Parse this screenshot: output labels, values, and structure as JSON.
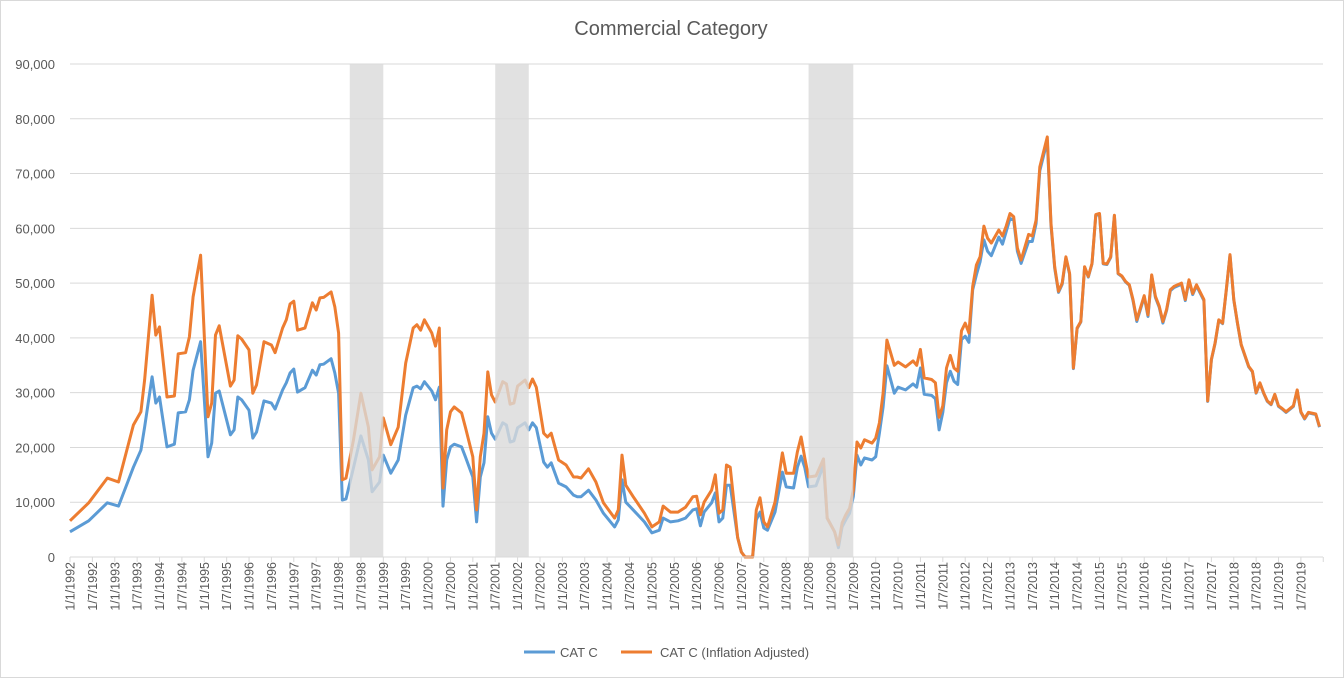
{
  "chart_data": {
    "type": "line",
    "title": "Commercial Category",
    "xlabel": "",
    "ylabel": "",
    "ylim": [
      0,
      90000
    ],
    "y_ticks": [
      "0",
      "10,000",
      "20,000",
      "30,000",
      "40,000",
      "50,000",
      "60,000",
      "70,000",
      "80,000",
      "90,000"
    ],
    "x_range": [
      "1992-01",
      "2019-12"
    ],
    "grid": "horizontal",
    "legend_position": "bottom",
    "shaded_periods": [
      {
        "start": "1998-04",
        "end": "1999-01"
      },
      {
        "start": "2001-07",
        "end": "2002-04"
      },
      {
        "start": "2008-07",
        "end": "2009-07"
      }
    ],
    "shade_color": "#d9d9d9",
    "series": [
      {
        "name": "CAT C",
        "color": "#5B9BD5"
      },
      {
        "name": "CAT C (Inflation Adjusted)",
        "color": "#ED7D31"
      }
    ],
    "points_columns": [
      "date",
      "CAT C",
      "CAT C (Inflation Adjusted)"
    ],
    "points": [
      [
        "1992-01",
        4600,
        6600
      ],
      [
        "1992-06",
        6600,
        9900
      ],
      [
        "1992-11",
        9900,
        14400
      ],
      [
        "1993-02",
        9300,
        13700
      ],
      [
        "1993-06",
        16400,
        24100
      ],
      [
        "1993-08",
        19500,
        26500
      ],
      [
        "1993-09",
        23700,
        32300
      ],
      [
        "1993-11",
        32900,
        47800
      ],
      [
        "1993-12",
        28100,
        40500
      ],
      [
        "1994-01",
        29200,
        42000
      ],
      [
        "1994-03",
        20100,
        29200
      ],
      [
        "1994-05",
        20600,
        29400
      ],
      [
        "1994-06",
        26300,
        37100
      ],
      [
        "1994-08",
        26500,
        37300
      ],
      [
        "1994-09",
        28700,
        40200
      ],
      [
        "1994-10",
        34100,
        47500
      ],
      [
        "1994-12",
        39300,
        55100
      ],
      [
        "1995-02",
        18300,
        25600
      ],
      [
        "1995-03",
        20800,
        28100
      ],
      [
        "1995-04",
        29900,
        40500
      ],
      [
        "1995-05",
        30300,
        42200
      ],
      [
        "1995-08",
        22300,
        31200
      ],
      [
        "1995-09",
        23200,
        32300
      ],
      [
        "1995-10",
        29200,
        40400
      ],
      [
        "1995-11",
        28700,
        39800
      ],
      [
        "1996-01",
        26800,
        37800
      ],
      [
        "1996-02",
        21700,
        29900
      ],
      [
        "1996-03",
        22800,
        31400
      ],
      [
        "1996-05",
        28500,
        39300
      ],
      [
        "1996-07",
        28100,
        38700
      ],
      [
        "1996-08",
        27000,
        37300
      ],
      [
        "1996-10",
        30500,
        41800
      ],
      [
        "1996-11",
        31800,
        43300
      ],
      [
        "1996-12",
        33600,
        46200
      ],
      [
        "1997-01",
        34300,
        46700
      ],
      [
        "1997-02",
        30100,
        41400
      ],
      [
        "1997-04",
        30900,
        41800
      ],
      [
        "1997-06",
        34100,
        46400
      ],
      [
        "1997-07",
        33200,
        45100
      ],
      [
        "1997-08",
        35100,
        47300
      ],
      [
        "1997-09",
        35200,
        47400
      ],
      [
        "1997-11",
        36200,
        48400
      ],
      [
        "1997-12",
        33600,
        45700
      ],
      [
        "1998-01",
        29900,
        40900
      ],
      [
        "1998-02",
        10400,
        14100
      ],
      [
        "1998-03",
        10600,
        14400
      ],
      [
        "1998-05",
        16300,
        21400
      ],
      [
        "1998-07",
        22100,
        29900
      ],
      [
        "1998-09",
        17700,
        23700
      ],
      [
        "1998-10",
        11900,
        15900
      ],
      [
        "1998-12",
        13700,
        18300
      ],
      [
        "1999-01",
        18600,
        25400
      ],
      [
        "1999-03",
        15300,
        20500
      ],
      [
        "1999-05",
        17700,
        23700
      ],
      [
        "1999-07",
        25900,
        35400
      ],
      [
        "1999-09",
        30900,
        41800
      ],
      [
        "1999-10",
        31200,
        42400
      ],
      [
        "1999-11",
        30700,
        41400
      ],
      [
        "1999-12",
        32000,
        43300
      ],
      [
        "2000-02",
        30300,
        40900
      ],
      [
        "2000-03",
        28700,
        38500
      ],
      [
        "2000-04",
        31000,
        41800
      ],
      [
        "2000-05",
        9300,
        12600
      ],
      [
        "2000-06",
        17700,
        23200
      ],
      [
        "2000-07",
        20100,
        26500
      ],
      [
        "2000-08",
        20600,
        27400
      ],
      [
        "2000-10",
        20100,
        26300
      ],
      [
        "2000-11",
        18300,
        23700
      ],
      [
        "2001-01",
        14600,
        18300
      ],
      [
        "2001-02",
        6400,
        8600
      ],
      [
        "2001-03",
        14600,
        18300
      ],
      [
        "2001-04",
        17200,
        22600
      ],
      [
        "2001-05",
        25600,
        33800
      ],
      [
        "2001-06",
        22600,
        29600
      ],
      [
        "2001-07",
        21500,
        28300
      ],
      [
        "2001-09",
        24500,
        32000
      ],
      [
        "2001-10",
        24100,
        31600
      ],
      [
        "2001-11",
        21000,
        27900
      ],
      [
        "2001-12",
        21200,
        28100
      ],
      [
        "2002-01",
        23600,
        31200
      ],
      [
        "2002-03",
        24500,
        32300
      ],
      [
        "2002-04",
        23200,
        30900
      ],
      [
        "2002-05",
        24500,
        32500
      ],
      [
        "2002-06",
        23600,
        31000
      ],
      [
        "2002-08",
        17300,
        22600
      ],
      [
        "2002-09",
        16400,
        21900
      ],
      [
        "2002-10",
        17200,
        22600
      ],
      [
        "2002-12",
        13500,
        17700
      ],
      [
        "2003-02",
        12800,
        16800
      ],
      [
        "2003-04",
        11300,
        14600
      ],
      [
        "2003-05",
        11000,
        14600
      ],
      [
        "2003-06",
        11000,
        14400
      ],
      [
        "2003-08",
        12200,
        16100
      ],
      [
        "2003-10",
        10400,
        13700
      ],
      [
        "2003-12",
        8000,
        9900
      ],
      [
        "2004-03",
        5500,
        7100
      ],
      [
        "2004-04",
        6800,
        8600
      ],
      [
        "2004-05",
        14100,
        18600
      ],
      [
        "2004-06",
        10000,
        13100
      ],
      [
        "2004-08",
        8600,
        11000
      ],
      [
        "2004-11",
        6400,
        8000
      ],
      [
        "2005-01",
        4400,
        5500
      ],
      [
        "2005-03",
        4900,
        6400
      ],
      [
        "2005-04",
        7100,
        9300
      ],
      [
        "2005-06",
        6400,
        8200
      ],
      [
        "2005-08",
        6600,
        8200
      ],
      [
        "2005-10",
        7100,
        9100
      ],
      [
        "2005-12",
        8600,
        11000
      ],
      [
        "2006-01",
        8800,
        11100
      ],
      [
        "2006-02",
        5700,
        7700
      ],
      [
        "2006-03",
        8200,
        10000
      ],
      [
        "2006-05",
        9900,
        12200
      ],
      [
        "2006-06",
        11700,
        15000
      ],
      [
        "2006-07",
        6400,
        8000
      ],
      [
        "2006-08",
        7100,
        8600
      ],
      [
        "2006-09",
        13100,
        16800
      ],
      [
        "2006-10",
        13100,
        16400
      ],
      [
        "2006-12",
        3500,
        3500
      ],
      [
        "2007-01",
        900,
        900
      ],
      [
        "2007-02",
        0,
        0
      ],
      [
        "2007-04",
        0,
        0
      ],
      [
        "2007-05",
        6800,
        8600
      ],
      [
        "2007-06",
        8200,
        10800
      ],
      [
        "2007-07",
        5300,
        6400
      ],
      [
        "2007-08",
        4900,
        5500
      ],
      [
        "2007-10",
        8200,
        10000
      ],
      [
        "2007-12",
        15500,
        19000
      ],
      [
        "2008-01",
        12800,
        15300
      ],
      [
        "2008-03",
        12600,
        15300
      ],
      [
        "2008-04",
        16400,
        19200
      ],
      [
        "2008-05",
        18400,
        21900
      ],
      [
        "2008-06",
        16300,
        18100
      ],
      [
        "2008-07",
        12800,
        14600
      ],
      [
        "2008-09",
        13000,
        14800
      ],
      [
        "2008-11",
        16800,
        17900
      ],
      [
        "2008-12",
        7100,
        7100
      ],
      [
        "2009-02",
        4600,
        4600
      ],
      [
        "2009-03",
        1700,
        2200
      ],
      [
        "2009-04",
        5500,
        6200
      ],
      [
        "2009-05",
        6800,
        7700
      ],
      [
        "2009-06",
        8000,
        8900
      ],
      [
        "2009-07",
        11000,
        12200
      ],
      [
        "2009-08",
        18600,
        21000
      ],
      [
        "2009-09",
        16800,
        19900
      ],
      [
        "2009-10",
        18100,
        21400
      ],
      [
        "2009-12",
        17700,
        20800
      ],
      [
        "2010-01",
        18300,
        21700
      ],
      [
        "2010-02",
        22600,
        24500
      ],
      [
        "2010-03",
        27400,
        29900
      ],
      [
        "2010-04",
        34900,
        39600
      ],
      [
        "2010-06",
        29900,
        35000
      ],
      [
        "2010-07",
        31000,
        35600
      ],
      [
        "2010-09",
        30500,
        34700
      ],
      [
        "2010-11",
        31600,
        35800
      ],
      [
        "2010-12",
        31000,
        35000
      ],
      [
        "2011-01",
        34500,
        37900
      ],
      [
        "2011-02",
        29700,
        32700
      ],
      [
        "2011-04",
        29500,
        32400
      ],
      [
        "2011-05",
        28900,
        31800
      ],
      [
        "2011-06",
        23200,
        25500
      ],
      [
        "2011-07",
        26400,
        27600
      ],
      [
        "2011-08",
        31800,
        34500
      ],
      [
        "2011-09",
        33900,
        36800
      ],
      [
        "2011-10",
        32100,
        34500
      ],
      [
        "2011-11",
        31500,
        33900
      ],
      [
        "2011-12",
        39700,
        41300
      ],
      [
        "2012-01",
        40300,
        42700
      ],
      [
        "2012-02",
        39200,
        40900
      ],
      [
        "2012-03",
        48800,
        49400
      ],
      [
        "2012-04",
        51500,
        53300
      ],
      [
        "2012-05",
        53900,
        54800
      ],
      [
        "2012-06",
        57900,
        60400
      ],
      [
        "2012-07",
        55800,
        58200
      ],
      [
        "2012-08",
        55000,
        57300
      ],
      [
        "2012-10",
        58400,
        59700
      ],
      [
        "2012-11",
        57100,
        58600
      ],
      [
        "2012-12",
        59400,
        60400
      ],
      [
        "2013-01",
        61800,
        62700
      ],
      [
        "2013-02",
        61500,
        62100
      ],
      [
        "2013-03",
        55800,
        56400
      ],
      [
        "2013-04",
        53600,
        54200
      ],
      [
        "2013-06",
        57600,
        58900
      ],
      [
        "2013-07",
        57600,
        58600
      ],
      [
        "2013-08",
        60900,
        61500
      ],
      [
        "2013-09",
        70500,
        71200
      ],
      [
        "2013-11",
        76000,
        76700
      ],
      [
        "2013-12",
        60500,
        60900
      ],
      [
        "2014-01",
        52700,
        53000
      ],
      [
        "2014-02",
        48300,
        48500
      ],
      [
        "2014-03",
        49800,
        50000
      ],
      [
        "2014-04",
        54600,
        54800
      ],
      [
        "2014-05",
        51600,
        51800
      ],
      [
        "2014-06",
        34400,
        34500
      ],
      [
        "2014-07",
        41700,
        41800
      ],
      [
        "2014-08",
        42900,
        43000
      ],
      [
        "2014-09",
        52900,
        53000
      ],
      [
        "2014-10",
        51100,
        51200
      ],
      [
        "2014-11",
        53500,
        53600
      ],
      [
        "2014-12",
        62400,
        62500
      ],
      [
        "2015-01",
        62600,
        62700
      ],
      [
        "2015-02",
        53500,
        53600
      ],
      [
        "2015-03",
        53400,
        53500
      ],
      [
        "2015-04",
        54700,
        54800
      ],
      [
        "2015-05",
        62300,
        62400
      ],
      [
        "2015-06",
        51700,
        51800
      ],
      [
        "2015-07",
        51200,
        51300
      ],
      [
        "2015-08",
        50200,
        50300
      ],
      [
        "2015-09",
        49600,
        49700
      ],
      [
        "2015-10",
        46800,
        47000
      ],
      [
        "2015-11",
        43000,
        43300
      ],
      [
        "2016-01",
        47500,
        47700
      ],
      [
        "2016-02",
        43900,
        44200
      ],
      [
        "2016-03",
        51300,
        51500
      ],
      [
        "2016-04",
        47400,
        47600
      ],
      [
        "2016-05",
        45600,
        45800
      ],
      [
        "2016-06",
        42700,
        43000
      ],
      [
        "2016-07",
        45000,
        45200
      ],
      [
        "2016-08",
        48600,
        48800
      ],
      [
        "2016-09",
        49200,
        49400
      ],
      [
        "2016-11",
        49800,
        50000
      ],
      [
        "2016-12",
        46800,
        47000
      ],
      [
        "2017-01",
        50400,
        50600
      ],
      [
        "2017-02",
        47900,
        48100
      ],
      [
        "2017-03",
        49500,
        49700
      ],
      [
        "2017-05",
        46800,
        47000
      ],
      [
        "2017-06",
        28400,
        28500
      ],
      [
        "2017-07",
        36000,
        36100
      ],
      [
        "2017-08",
        39000,
        39100
      ],
      [
        "2017-09",
        43200,
        43300
      ],
      [
        "2017-10",
        42600,
        42700
      ],
      [
        "2017-11",
        48700,
        48800
      ],
      [
        "2017-12",
        55100,
        55200
      ],
      [
        "2018-01",
        46900,
        47000
      ],
      [
        "2018-02",
        42600,
        42700
      ],
      [
        "2018-03",
        38700,
        38800
      ],
      [
        "2018-05",
        34700,
        34800
      ],
      [
        "2018-06",
        33800,
        33900
      ],
      [
        "2018-07",
        29900,
        30000
      ],
      [
        "2018-08",
        31700,
        31800
      ],
      [
        "2018-09",
        29900,
        30000
      ],
      [
        "2018-10",
        28400,
        28500
      ],
      [
        "2018-11",
        27800,
        27900
      ],
      [
        "2018-12",
        29600,
        29700
      ],
      [
        "2019-01",
        27500,
        27600
      ],
      [
        "2019-02",
        27000,
        27100
      ],
      [
        "2019-03",
        26400,
        26500
      ],
      [
        "2019-05",
        27500,
        27600
      ],
      [
        "2019-06",
        30400,
        30500
      ],
      [
        "2019-07",
        26400,
        26500
      ],
      [
        "2019-08",
        25200,
        25300
      ],
      [
        "2019-09",
        26300,
        26400
      ],
      [
        "2019-11",
        26000,
        26100
      ],
      [
        "2019-12",
        23700,
        23800
      ]
    ],
    "x_tick_labels": [
      "1/1/1992",
      "1/7/1992",
      "1/1/1993",
      "1/7/1993",
      "1/1/1994",
      "1/7/1994",
      "1/1/1995",
      "1/7/1995",
      "1/1/1996",
      "1/7/1996",
      "1/1/1997",
      "1/7/1997",
      "1/1/1998",
      "1/7/1998",
      "1/1/1999",
      "1/7/1999",
      "1/1/2000",
      "1/7/2000",
      "1/1/2001",
      "1/7/2001",
      "1/1/2002",
      "1/7/2002",
      "1/1/2003",
      "1/7/2003",
      "1/1/2004",
      "1/7/2004",
      "1/1/2005",
      "1/7/2005",
      "1/1/2006",
      "1/7/2006",
      "1/1/2007",
      "1/7/2007",
      "1/1/2008",
      "1/7/2008",
      "1/1/2009",
      "1/7/2009",
      "1/1/2010",
      "1/7/2010",
      "1/1/2011",
      "1/7/2011",
      "1/1/2012",
      "1/7/2012",
      "1/1/2013",
      "1/7/2013",
      "1/1/2014",
      "1/7/2014",
      "1/1/2015",
      "1/7/2015",
      "1/1/2016",
      "1/7/2016",
      "1/1/2017",
      "1/7/2017",
      "1/1/2018",
      "1/7/2018",
      "1/1/2019",
      "1/7/2019"
    ]
  }
}
